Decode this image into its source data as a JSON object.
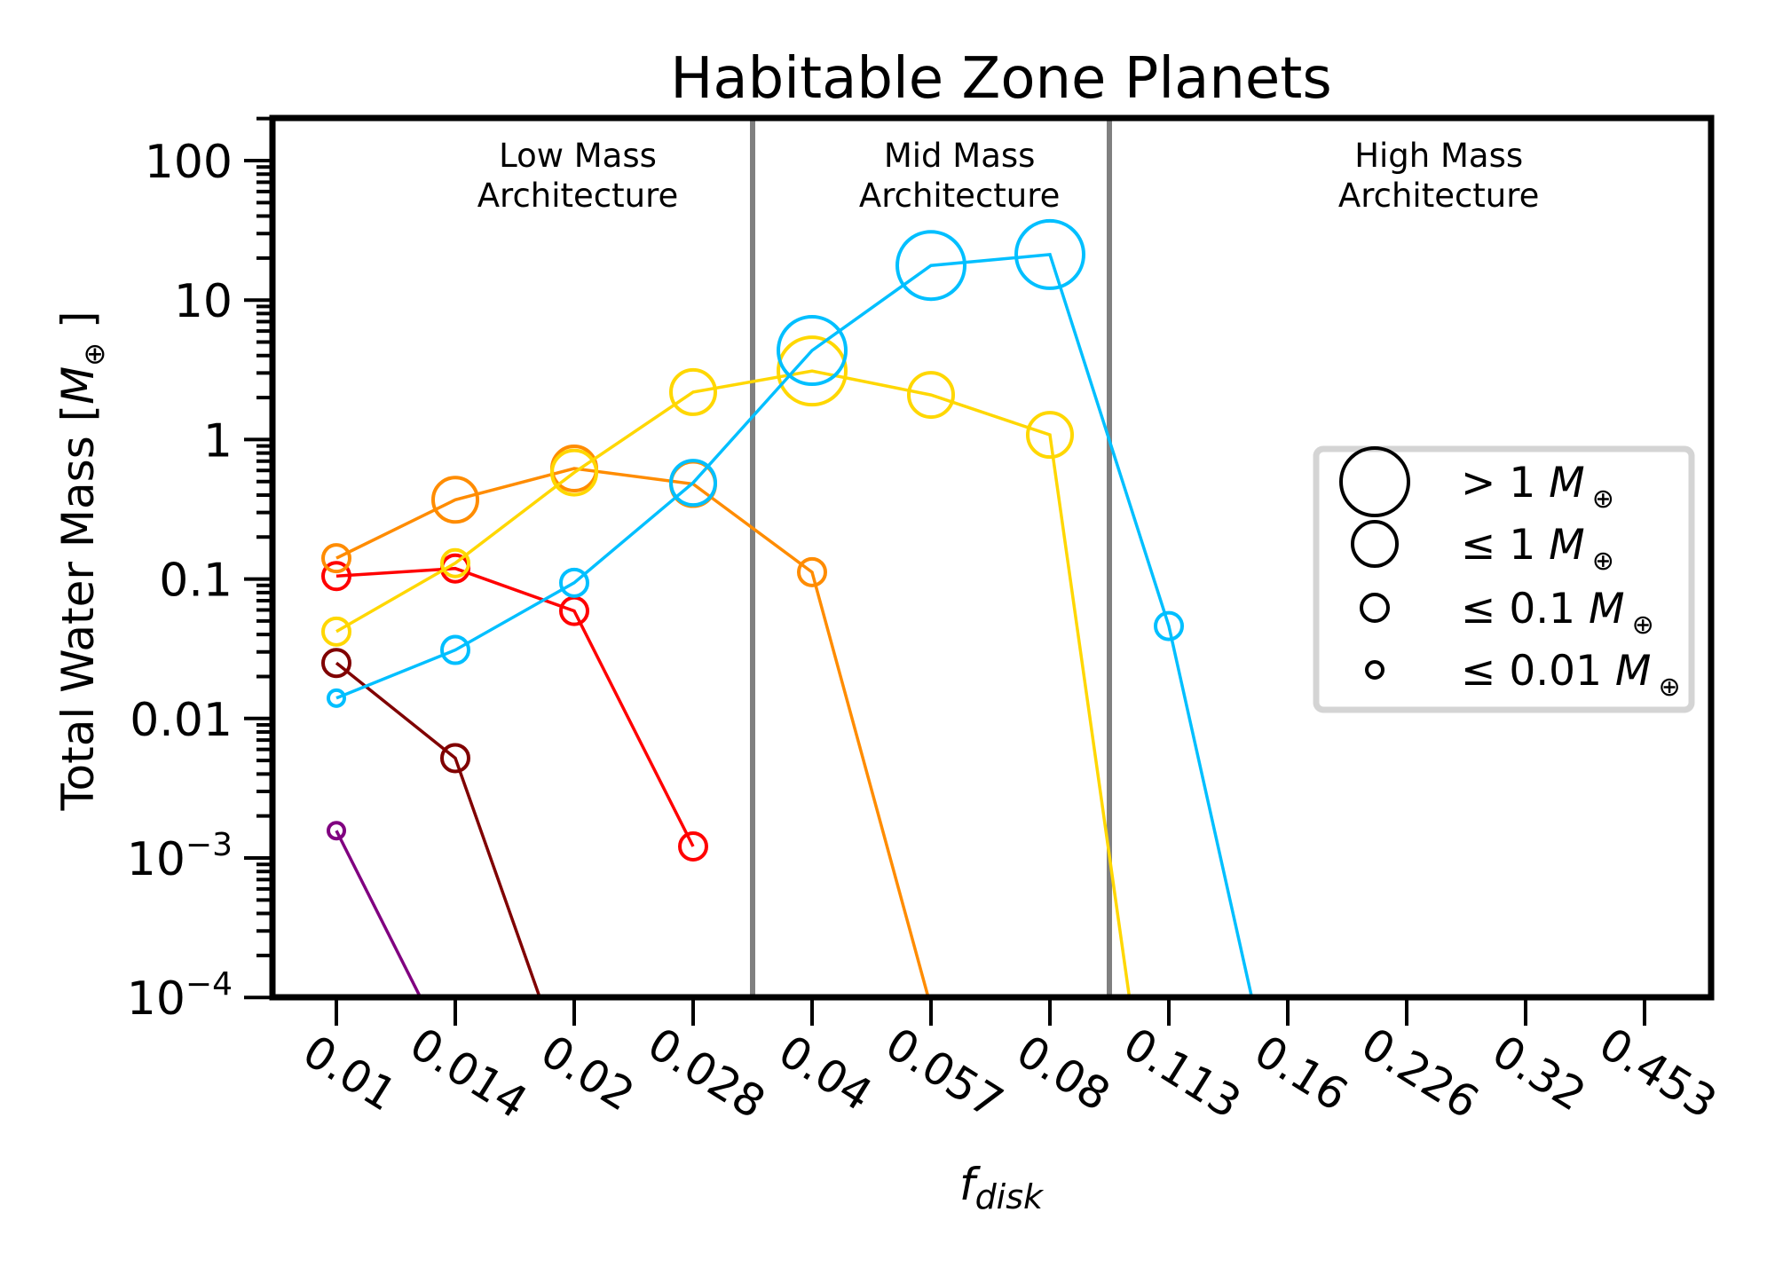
{
  "chart_data": {
    "type": "line",
    "title": "Habitable Zone Planets",
    "xlabel": "f",
    "xlabel_subscript": "disk",
    "ylabel": "Total Water Mass [",
    "ylabel_symbol": "M",
    "ylabel_subscript": "⊕",
    "ylabel_close": " ]",
    "yscale": "log",
    "ylim": [
      0.0001,
      202
    ],
    "grid": false,
    "x_is_categorical": true,
    "categories": [
      "0.01",
      "0.014",
      "0.02",
      "0.028",
      "0.04",
      "0.057",
      "0.08",
      "0.113",
      "0.16",
      "0.226",
      "0.32",
      "0.453"
    ],
    "yticks": [
      {
        "value": 100,
        "label": "100"
      },
      {
        "value": 10,
        "label": "10"
      },
      {
        "value": 1,
        "label": "1"
      },
      {
        "value": 0.1,
        "label": "0.1"
      },
      {
        "value": 0.01,
        "label": "0.01"
      },
      {
        "value": 0.001,
        "label": "10",
        "exponent": "−3"
      },
      {
        "value": 0.0001,
        "label": "10",
        "exponent": "−4"
      }
    ],
    "region_dividers": [
      3.5,
      6.5
    ],
    "regions": [
      {
        "line1": "Low Mass",
        "line2": "Architecture",
        "center_index": 2.03
      },
      {
        "line1": "Mid Mass",
        "line2": "Architecture",
        "center_index": 5.24
      },
      {
        "line1": "High Mass",
        "line2": "Architecture",
        "center_index": 9.27
      }
    ],
    "series": [
      {
        "name": "purple",
        "color": "#800080",
        "values": [
          0.00157,
          3.2e-05
        ],
        "marker_class": [
          "le_0.01",
          null
        ]
      },
      {
        "name": "maroon",
        "color": "#800000",
        "values": [
          0.025,
          0.0052,
          2e-05
        ],
        "marker_class": [
          "le_0.1",
          "le_0.1",
          null
        ]
      },
      {
        "name": "red",
        "color": "#ff0000",
        "values": [
          0.105,
          0.119,
          0.059,
          0.00121
        ],
        "marker_class": [
          "le_0.1",
          "le_0.1",
          "le_0.1",
          "le_0.1"
        ]
      },
      {
        "name": "orange",
        "color": "#ff8c00",
        "values": [
          0.141,
          0.37,
          0.62,
          0.48,
          0.112,
          8.5e-05
        ],
        "marker_class": [
          "le_0.1",
          "le_1",
          "le_1",
          "le_1",
          "le_0.1",
          null
        ]
      },
      {
        "name": "gold",
        "color": "#ffd700",
        "values": [
          0.042,
          0.13,
          0.58,
          2.19,
          3.1,
          2.09,
          1.08,
          1e-06
        ],
        "marker_class": [
          "le_0.1",
          "le_0.1",
          "le_1",
          "le_1",
          "gt_1",
          "le_1",
          "le_1",
          null
        ]
      },
      {
        "name": "deepskyblue",
        "color": "#00bfff",
        "values": [
          0.014,
          0.031,
          0.094,
          0.49,
          4.35,
          17.7,
          21.2,
          0.046,
          7e-06
        ],
        "marker_class": [
          "le_0.01",
          "le_0.1",
          "le_0.1",
          "le_1",
          "gt_1",
          "gt_1",
          "gt_1",
          "le_0.1",
          null
        ]
      }
    ],
    "legend": {
      "placement": "center-right",
      "entries": [
        {
          "marker_class": "gt_1",
          "prefix": "> 1 ",
          "symbol": "M",
          "subscript": "⊕"
        },
        {
          "marker_class": "le_1",
          "prefix": "≤ 1 ",
          "symbol": "M",
          "subscript": "⊕"
        },
        {
          "marker_class": "le_0.1",
          "prefix": "≤ 0.1 ",
          "symbol": "M",
          "subscript": "⊕"
        },
        {
          "marker_class": "le_0.01",
          "prefix": "≤ 0.01 ",
          "symbol": "M",
          "subscript": "⊕"
        }
      ]
    },
    "colors": {
      "axes": "#000000",
      "divider": "#808080",
      "legend_frame": "#d4d4d4"
    }
  }
}
